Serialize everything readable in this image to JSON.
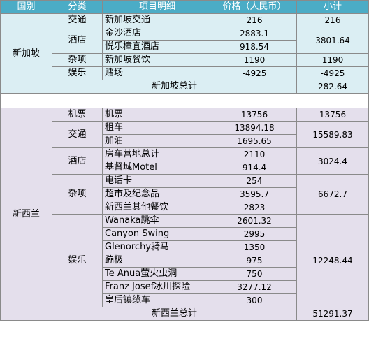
{
  "headers": {
    "country": "国别",
    "category": "分类",
    "item": "项目明细",
    "price": "价格（人民币）",
    "subtotal": "小计"
  },
  "singapore": {
    "country": "新加坡",
    "groups": [
      {
        "category": "交通",
        "subtotal": "216",
        "items": [
          {
            "name": "新加坡交通",
            "price": "216"
          }
        ]
      },
      {
        "category": "酒店",
        "subtotal": "3801.64",
        "items": [
          {
            "name": "金沙酒店",
            "price": "2883.1"
          },
          {
            "name": "悦乐樟宜酒店",
            "price": "918.54"
          }
        ]
      },
      {
        "category": "杂项",
        "subtotal": "1190",
        "items": [
          {
            "name": "新加坡餐饮",
            "price": "1190"
          }
        ]
      },
      {
        "category": "娱乐",
        "subtotal": "-4925",
        "items": [
          {
            "name": "赌场",
            "price": "-4925"
          }
        ]
      }
    ],
    "total_label": "新加坡总计",
    "total": "282.64"
  },
  "new_zealand": {
    "country": "新西兰",
    "groups": [
      {
        "category": "机票",
        "subtotal": "13756",
        "items": [
          {
            "name": "机票",
            "price": "13756"
          }
        ]
      },
      {
        "category": "交通",
        "subtotal": "15589.83",
        "items": [
          {
            "name": "租车",
            "price": "13894.18"
          },
          {
            "name": "加油",
            "price": "1695.65"
          }
        ]
      },
      {
        "category": "酒店",
        "subtotal": "3024.4",
        "items": [
          {
            "name": "房车营地总计",
            "price": "2110"
          },
          {
            "name": "基督城Motel",
            "price": "914.4"
          }
        ]
      },
      {
        "category": "杂项",
        "subtotal": "6672.7",
        "items": [
          {
            "name": "电话卡",
            "price": "254"
          },
          {
            "name": "超市及纪念品",
            "price": "3595.7"
          },
          {
            "name": "新西兰其他餐饮",
            "price": "2823"
          }
        ]
      },
      {
        "category": "娱乐",
        "subtotal": "12248.44",
        "items": [
          {
            "name": "Wanaka跳伞",
            "price": "2601.32"
          },
          {
            "name": "Canyon Swing",
            "price": "2995"
          },
          {
            "name": "Glenorchy骑马",
            "price": "1350"
          },
          {
            "name": "蹦极",
            "price": "975"
          },
          {
            "name": "Te Anua萤火虫洞",
            "price": "750"
          },
          {
            "name": "Franz Josef冰川探险",
            "price": "3277.12"
          },
          {
            "name": "皇后镇缆车",
            "price": "300"
          }
        ]
      }
    ],
    "total_label": "新西兰总计",
    "total": "51291.37"
  },
  "colors": {
    "header": "#4bacc6",
    "singapore_bg": "#dbeef3",
    "new_zealand_bg": "#e4dfec",
    "border": "#8a8a8a"
  }
}
